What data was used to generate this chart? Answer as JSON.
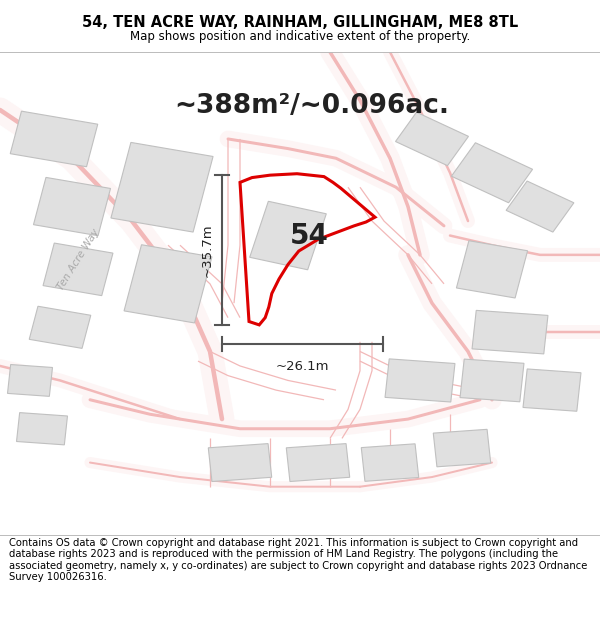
{
  "title_line1": "54, TEN ACRE WAY, RAINHAM, GILLINGHAM, ME8 8TL",
  "title_line2": "Map shows position and indicative extent of the property.",
  "area_text": "~388m²/~0.096ac.",
  "height_label": "~35.7m",
  "width_label": "~26.1m",
  "plot_number": "54",
  "footer_text": "Contains OS data © Crown copyright and database right 2021. This information is subject to Crown copyright and database rights 2023 and is reproduced with the permission of HM Land Registry. The polygons (including the associated geometry, namely x, y co-ordinates) are subject to Crown copyright and database rights 2023 Ordnance Survey 100026316.",
  "road_color": "#f2b8b8",
  "road_fill": "#f9f0f0",
  "building_color": "#e0e0e0",
  "building_edge": "#c0c0c0",
  "plot_color": "#dd0000",
  "dim_color": "#555555",
  "road_label": "Ten Acre Way",
  "title_fontsize": 10.5,
  "subtitle_fontsize": 8.5,
  "area_fontsize": 19,
  "label_fontsize": 9.5,
  "plot_num_fontsize": 20,
  "footer_fontsize": 7.2,
  "map_bg": "#fafafa",
  "footer_bg": "#ffffff",
  "title_bg": "#ffffff"
}
